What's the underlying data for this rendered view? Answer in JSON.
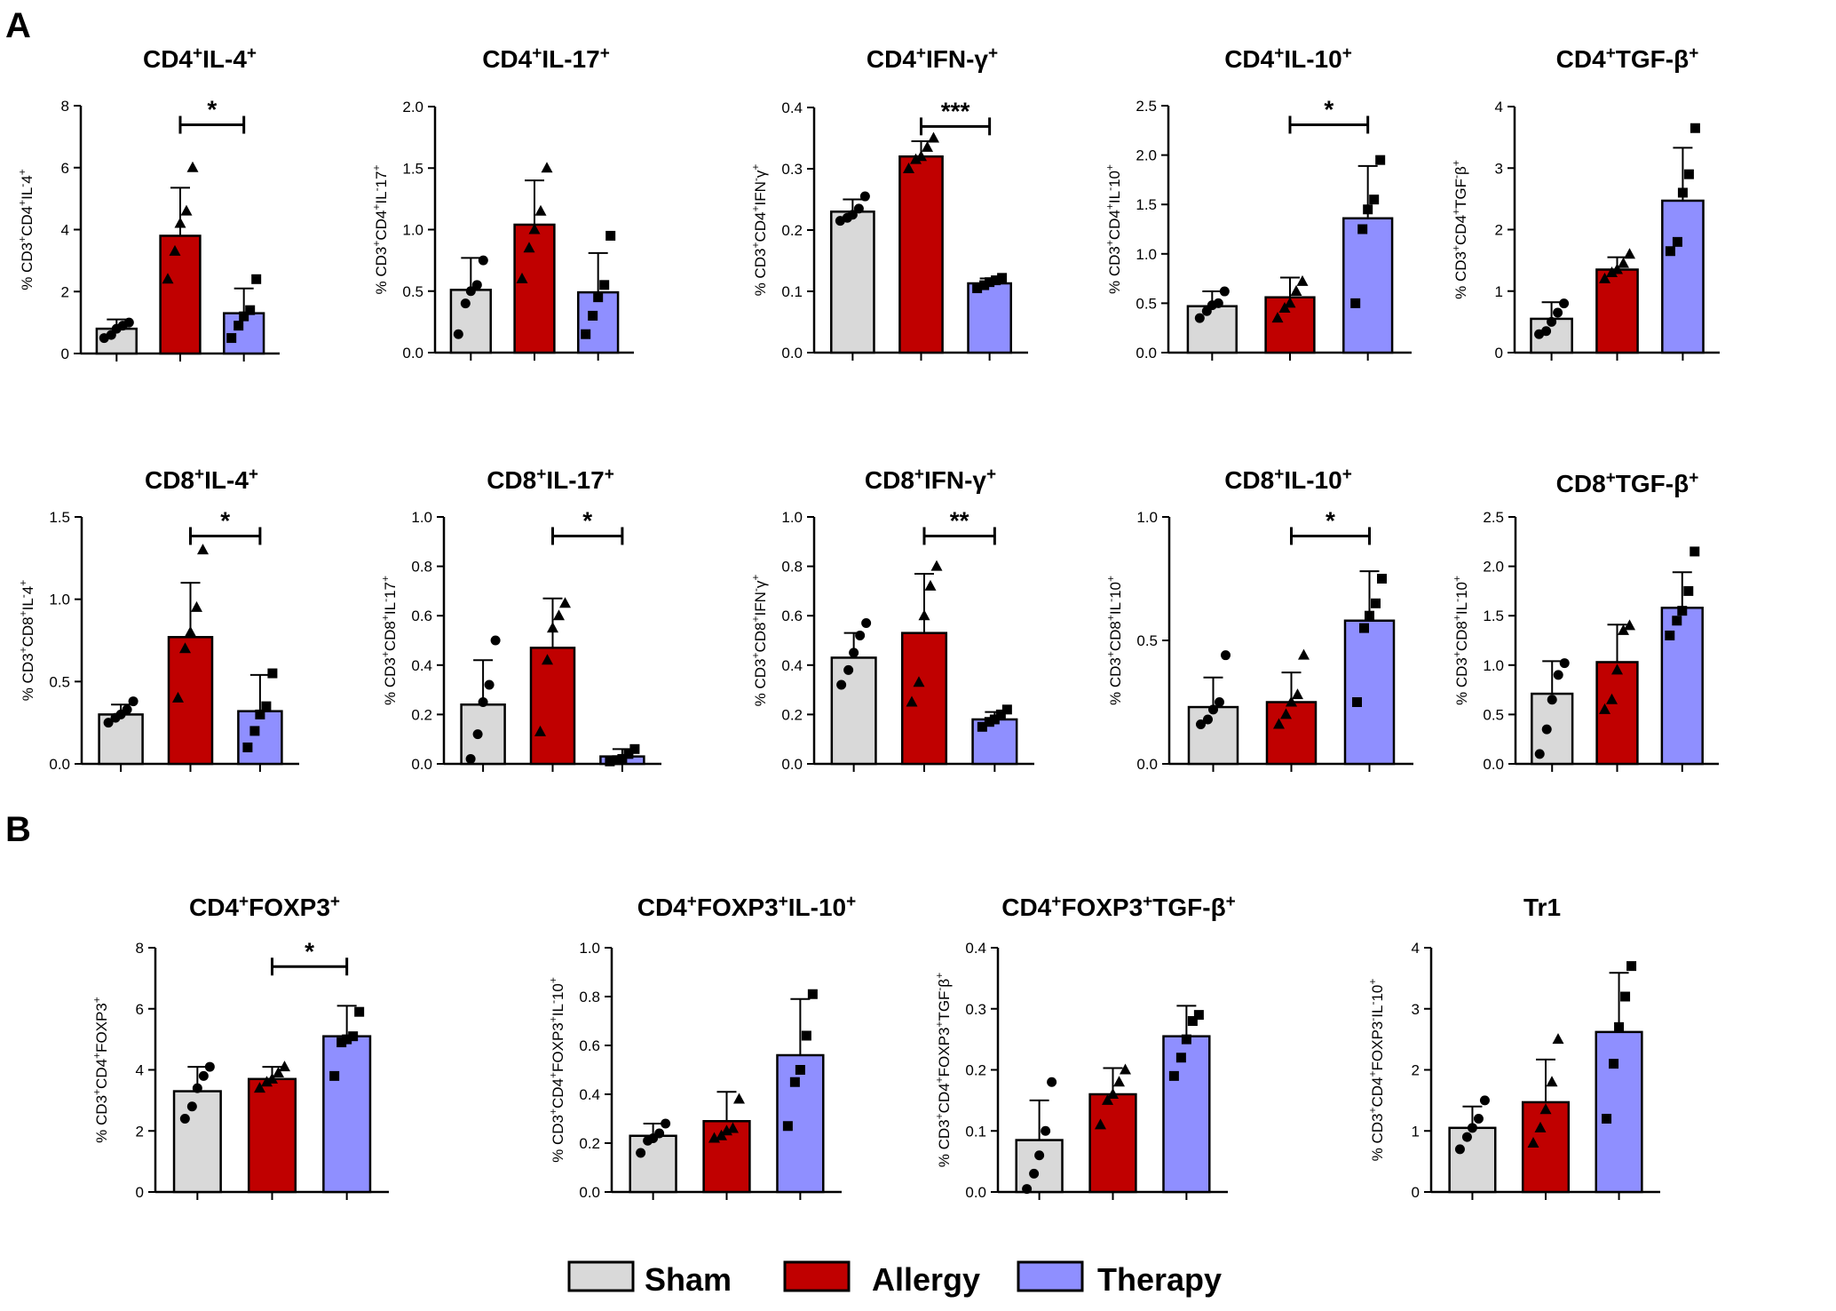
{
  "panels": {
    "A": "A",
    "B": "B"
  },
  "legend": [
    {
      "name": "Sham",
      "color": "#d9d9d9"
    },
    {
      "name": "Allergy",
      "color": "#c00000"
    },
    {
      "name": "Therapy",
      "color": "#8f8fff"
    }
  ],
  "chart_data": [
    {
      "type": "bar",
      "title": "CD4+IL-4+",
      "title_parts": [
        "CD4",
        "+",
        "IL-4",
        "+"
      ],
      "ylabel": "% CD3+CD4+IL-4+",
      "ylim": [
        0,
        8
      ],
      "yticks": [
        "0",
        "2",
        "4",
        "6",
        "8"
      ],
      "categories": [
        "Sham",
        "Allergy",
        "Therapy"
      ],
      "values": [
        0.8,
        3.8,
        1.3
      ],
      "errors": [
        0.3,
        1.55,
        0.8
      ],
      "points": [
        [
          0.5,
          0.6,
          0.8,
          0.9,
          1.0
        ],
        [
          2.4,
          3.3,
          4.2,
          4.6,
          6.0
        ],
        [
          0.5,
          0.9,
          1.2,
          1.4,
          2.4
        ]
      ],
      "sig": {
        "from": 1,
        "to": 2,
        "label": "*"
      }
    },
    {
      "type": "bar",
      "title": "CD4+IL-17+",
      "title_parts": [
        "CD4",
        "+",
        "IL-17",
        "+"
      ],
      "ylabel": "% CD3+CD4+IL-17+",
      "ylim": [
        0,
        2
      ],
      "yticks": [
        "0.0",
        "0.5",
        "1.0",
        "1.5",
        "2.0"
      ],
      "categories": [
        "Sham",
        "Allergy",
        "Therapy"
      ],
      "values": [
        0.51,
        1.04,
        0.49
      ],
      "errors": [
        0.26,
        0.36,
        0.32
      ],
      "points": [
        [
          0.15,
          0.4,
          0.5,
          0.55,
          0.75
        ],
        [
          0.6,
          0.85,
          1.0,
          1.15,
          1.5
        ],
        [
          0.15,
          0.3,
          0.45,
          0.55,
          0.95
        ]
      ],
      "sig": null
    },
    {
      "type": "bar",
      "title": "CD4+IFN-γ+",
      "title_parts": [
        "CD4",
        "+",
        "IFN-γ",
        "+"
      ],
      "ylabel": "% CD3+CD4+IFN-γ+",
      "ylim": [
        0,
        0.4
      ],
      "yticks": [
        "0.0",
        "0.1",
        "0.2",
        "0.3",
        "0.4"
      ],
      "categories": [
        "Sham",
        "Allergy",
        "Therapy"
      ],
      "values": [
        0.23,
        0.32,
        0.113
      ],
      "errors": [
        0.02,
        0.025,
        0.008
      ],
      "points": [
        [
          0.215,
          0.22,
          0.225,
          0.235,
          0.255
        ],
        [
          0.3,
          0.315,
          0.32,
          0.335,
          0.35
        ],
        [
          0.105,
          0.11,
          0.115,
          0.118,
          0.122
        ]
      ],
      "sig": {
        "from": 1,
        "to": 2,
        "label": "***"
      }
    },
    {
      "type": "bar",
      "title": "CD4+IL-10+",
      "title_parts": [
        "CD4",
        "+",
        "IL-10",
        "+"
      ],
      "ylabel": "% CD3+CD4+IL-10+",
      "ylim": [
        0,
        2.5
      ],
      "yticks": [
        "0.0",
        "0.5",
        "1.0",
        "1.5",
        "2.0",
        "2.5"
      ],
      "categories": [
        "Sham",
        "Allergy",
        "Therapy"
      ],
      "values": [
        0.47,
        0.56,
        1.36
      ],
      "errors": [
        0.15,
        0.2,
        0.53
      ],
      "points": [
        [
          0.35,
          0.42,
          0.48,
          0.5,
          0.62
        ],
        [
          0.35,
          0.45,
          0.5,
          0.62,
          0.72
        ],
        [
          0.5,
          1.25,
          1.45,
          1.55,
          1.95
        ]
      ],
      "sig": {
        "from": 1,
        "to": 2,
        "label": "*"
      }
    },
    {
      "type": "bar",
      "title": "CD4+TGF-β+",
      "title_parts": [
        "CD4",
        "+",
        "TGF-β",
        "+"
      ],
      "ylabel": "% CD3+CD4+TGF-β+",
      "ylim": [
        0,
        4
      ],
      "yticks": [
        "0",
        "1",
        "2",
        "3",
        "4"
      ],
      "categories": [
        "Sham",
        "Allergy",
        "Therapy"
      ],
      "values": [
        0.55,
        1.35,
        2.47
      ],
      "errors": [
        0.27,
        0.2,
        0.86
      ],
      "points": [
        [
          0.3,
          0.35,
          0.5,
          0.65,
          0.8
        ],
        [
          1.2,
          1.3,
          1.35,
          1.45,
          1.6
        ],
        [
          1.65,
          1.8,
          2.6,
          2.9,
          3.65
        ]
      ],
      "sig": null
    },
    {
      "type": "bar",
      "title": "CD8+IL-4+",
      "title_parts": [
        "CD8",
        "+",
        "IL-4",
        "+"
      ],
      "ylabel": "% CD3+CD8+IL-4+",
      "ylim": [
        0,
        1.5
      ],
      "yticks": [
        "0.0",
        "0.5",
        "1.0",
        "1.5"
      ],
      "categories": [
        "Sham",
        "Allergy",
        "Therapy"
      ],
      "values": [
        0.3,
        0.77,
        0.32
      ],
      "errors": [
        0.06,
        0.33,
        0.22
      ],
      "points": [
        [
          0.25,
          0.28,
          0.3,
          0.33,
          0.38
        ],
        [
          0.4,
          0.7,
          0.8,
          0.95,
          1.3
        ],
        [
          0.1,
          0.2,
          0.3,
          0.35,
          0.55
        ]
      ],
      "sig": {
        "from": 1,
        "to": 2,
        "label": "*"
      }
    },
    {
      "type": "bar",
      "title": "CD8+IL-17+",
      "title_parts": [
        "CD8",
        "+",
        "IL-17",
        "+"
      ],
      "ylabel": "% CD3+CD8+IL-17+",
      "ylim": [
        0,
        1
      ],
      "yticks": [
        "0.0",
        "0.2",
        "0.4",
        "0.6",
        "0.8",
        "1.0"
      ],
      "categories": [
        "Sham",
        "Allergy",
        "Therapy"
      ],
      "values": [
        0.24,
        0.47,
        0.03
      ],
      "errors": [
        0.18,
        0.2,
        0.03
      ],
      "points": [
        [
          0.02,
          0.12,
          0.25,
          0.32,
          0.5
        ],
        [
          0.13,
          0.42,
          0.55,
          0.6,
          0.65
        ],
        [
          0.01,
          0.015,
          0.02,
          0.04,
          0.06
        ]
      ],
      "sig": {
        "from": 1,
        "to": 2,
        "label": "*"
      }
    },
    {
      "type": "bar",
      "title": "CD8+IFN-γ+",
      "title_parts": [
        "CD8",
        "+",
        "IFN-γ",
        "+"
      ],
      "ylabel": "% CD3+CD8+IFN-γ+",
      "ylim": [
        0,
        1
      ],
      "yticks": [
        "0.0",
        "0.2",
        "0.4",
        "0.6",
        "0.8",
        "1.0"
      ],
      "categories": [
        "Sham",
        "Allergy",
        "Therapy"
      ],
      "values": [
        0.43,
        0.53,
        0.18
      ],
      "errors": [
        0.1,
        0.24,
        0.03
      ],
      "points": [
        [
          0.32,
          0.38,
          0.45,
          0.52,
          0.57
        ],
        [
          0.25,
          0.33,
          0.6,
          0.72,
          0.8
        ],
        [
          0.15,
          0.17,
          0.18,
          0.2,
          0.22
        ]
      ],
      "sig": {
        "from": 1,
        "to": 2,
        "label": "**"
      }
    },
    {
      "type": "bar",
      "title": "CD8+IL-10+",
      "title_parts": [
        "CD8",
        "+",
        "IL-10",
        "+"
      ],
      "ylabel": "% CD3+CD8+IL-10+",
      "ylim": [
        0,
        1
      ],
      "yticks": [
        "0.0",
        "0.5",
        "1.0"
      ],
      "categories": [
        "Sham",
        "Allergy",
        "Therapy"
      ],
      "values": [
        0.23,
        0.25,
        0.58
      ],
      "errors": [
        0.12,
        0.12,
        0.2
      ],
      "points": [
        [
          0.16,
          0.18,
          0.22,
          0.25,
          0.44
        ],
        [
          0.16,
          0.2,
          0.25,
          0.28,
          0.44
        ],
        [
          0.25,
          0.55,
          0.6,
          0.65,
          0.75
        ]
      ],
      "sig": {
        "from": 1,
        "to": 2,
        "label": "*"
      }
    },
    {
      "type": "bar",
      "title": "CD8+TGF-β+",
      "title_parts": [
        "CD8",
        "+",
        "TGF-β",
        "+"
      ],
      "ylabel": "% CD3+CD8+IL-10+",
      "ylim": [
        0,
        2.5
      ],
      "yticks": [
        "0.0",
        "0.5",
        "1.0",
        "1.5",
        "2.0",
        "2.5"
      ],
      "categories": [
        "Sham",
        "Allergy",
        "Therapy"
      ],
      "values": [
        0.71,
        1.03,
        1.58
      ],
      "errors": [
        0.33,
        0.38,
        0.36
      ],
      "points": [
        [
          0.1,
          0.35,
          0.65,
          0.9,
          1.02
        ],
        [
          0.55,
          0.65,
          0.95,
          1.35,
          1.4
        ],
        [
          1.3,
          1.45,
          1.55,
          1.75,
          2.15
        ]
      ],
      "sig": null
    },
    {
      "type": "bar",
      "title": "CD4+FOXP3+",
      "title_parts": [
        "CD4",
        "+",
        "FOXP3",
        "+"
      ],
      "ylabel": "% CD3+CD4+FOXP3+",
      "ylim": [
        0,
        8
      ],
      "yticks": [
        "0",
        "2",
        "4",
        "6",
        "8"
      ],
      "categories": [
        "Sham",
        "Allergy",
        "Therapy"
      ],
      "values": [
        3.3,
        3.7,
        5.1
      ],
      "errors": [
        0.8,
        0.4,
        1.0
      ],
      "points": [
        [
          2.4,
          2.8,
          3.4,
          3.8,
          4.1
        ],
        [
          3.4,
          3.6,
          3.7,
          3.9,
          4.1
        ],
        [
          3.8,
          4.9,
          5.0,
          5.1,
          5.9
        ]
      ],
      "sig": {
        "from": 1,
        "to": 2,
        "label": "*"
      }
    },
    {
      "type": "bar",
      "title": "CD4+FOXP3+IL-10+",
      "title_parts": [
        "CD4",
        "+",
        "FOXP3",
        "+",
        "IL-10",
        "+"
      ],
      "ylabel": "% CD3+CD4+FOXP3+IL-10+",
      "ylim": [
        0,
        1
      ],
      "yticks": [
        "0.0",
        "0.2",
        "0.4",
        "0.6",
        "0.8",
        "1.0"
      ],
      "categories": [
        "Sham",
        "Allergy",
        "Therapy"
      ],
      "values": [
        0.23,
        0.29,
        0.56
      ],
      "errors": [
        0.05,
        0.12,
        0.23
      ],
      "points": [
        [
          0.16,
          0.21,
          0.22,
          0.24,
          0.28
        ],
        [
          0.22,
          0.23,
          0.25,
          0.26,
          0.38
        ],
        [
          0.27,
          0.45,
          0.5,
          0.64,
          0.81
        ]
      ],
      "sig": null
    },
    {
      "type": "bar",
      "title": "CD4+FOXP3+TGF-β+",
      "title_parts": [
        "CD4",
        "+",
        "FOXP3",
        "+",
        "TGF-β",
        "+"
      ],
      "ylabel": "% CD3+CD4+FOXP3+TGF-β+",
      "ylim": [
        0,
        0.4
      ],
      "yticks": [
        "0.0",
        "0.1",
        "0.2",
        "0.3",
        "0.4"
      ],
      "categories": [
        "Sham",
        "Allergy",
        "Therapy"
      ],
      "values": [
        0.085,
        0.16,
        0.255
      ],
      "errors": [
        0.065,
        0.043,
        0.05
      ],
      "points": [
        [
          0.005,
          0.03,
          0.06,
          0.1,
          0.18
        ],
        [
          0.11,
          0.15,
          0.16,
          0.18,
          0.2
        ],
        [
          0.19,
          0.22,
          0.25,
          0.28,
          0.29
        ]
      ],
      "sig": null
    },
    {
      "type": "bar",
      "title": "Tr1",
      "title_parts": [
        "Tr1"
      ],
      "ylabel": "% CD3+CD4+FOXP3-IL-10+",
      "ylim": [
        0,
        4
      ],
      "yticks": [
        "0",
        "1",
        "2",
        "3",
        "4"
      ],
      "categories": [
        "Sham",
        "Allergy",
        "Therapy"
      ],
      "values": [
        1.05,
        1.47,
        2.62
      ],
      "errors": [
        0.35,
        0.7,
        0.97
      ],
      "points": [
        [
          0.7,
          0.9,
          1.05,
          1.2,
          1.5
        ],
        [
          0.8,
          1.05,
          1.35,
          1.8,
          2.5
        ],
        [
          1.2,
          2.1,
          2.7,
          3.2,
          3.7
        ]
      ],
      "sig": null
    }
  ]
}
